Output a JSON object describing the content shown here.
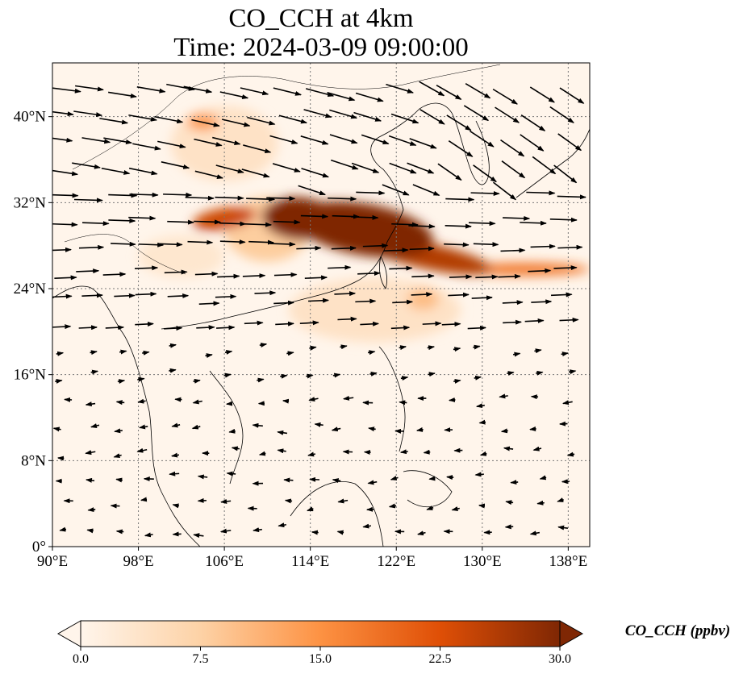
{
  "title": {
    "line1": "CO_CCH at 4km",
    "line2": "Time: 2024-03-09 09:00:00"
  },
  "map": {
    "lon_range": [
      90,
      140
    ],
    "lat_range": [
      0,
      45
    ],
    "lon_ticks": [
      {
        "value": 90,
        "label": "90°E"
      },
      {
        "value": 98,
        "label": "98°E"
      },
      {
        "value": 106,
        "label": "106°E"
      },
      {
        "value": 114,
        "label": "114°E"
      },
      {
        "value": 122,
        "label": "122°E"
      },
      {
        "value": 130,
        "label": "130°E"
      },
      {
        "value": 138,
        "label": "138°E"
      }
    ],
    "lat_ticks": [
      {
        "value": 0,
        "label": "0°"
      },
      {
        "value": 8,
        "label": "8°N"
      },
      {
        "value": 16,
        "label": "16°N"
      },
      {
        "value": 24,
        "label": "24°N"
      },
      {
        "value": 32,
        "label": "32°N"
      },
      {
        "value": 40,
        "label": "40°N"
      }
    ],
    "gridlines": true,
    "colors": {
      "background": "#fff5eb",
      "coast": "#000000",
      "grid": "#777777"
    }
  },
  "colorbar": {
    "title": "CO_CCH (ppbv)",
    "min": 0,
    "max": 30,
    "ticks": [
      {
        "value": 0,
        "label": "0.0"
      },
      {
        "value": 7.5,
        "label": "7.5"
      },
      {
        "value": 15,
        "label": "15.0"
      },
      {
        "value": 22.5,
        "label": "22.5"
      },
      {
        "value": 30,
        "label": "30.0"
      }
    ],
    "colormap": [
      "#fff5eb",
      "#fdd2a6",
      "#fd9243",
      "#df4f06",
      "#7f2704"
    ],
    "extend": "both"
  },
  "plumes": [
    {
      "lon": 119,
      "lat": 29.5,
      "rx": 6.5,
      "ry": 2.4,
      "rot": 10,
      "value": 30
    },
    {
      "lon": 113,
      "lat": 30.5,
      "rx": 3.5,
      "ry": 2.0,
      "rot": 5,
      "value": 30
    },
    {
      "lon": 125,
      "lat": 27,
      "rx": 6,
      "ry": 1.2,
      "rot": 12,
      "value": 26
    },
    {
      "lon": 134,
      "lat": 25.8,
      "rx": 6,
      "ry": 0.6,
      "rot": 0,
      "value": 18
    },
    {
      "lon": 106,
      "lat": 30.5,
      "rx": 3,
      "ry": 1.0,
      "rot": -10,
      "value": 24
    },
    {
      "lon": 110,
      "lat": 29.5,
      "rx": 4,
      "ry": 3.0,
      "rot": 0,
      "value": 8
    },
    {
      "lon": 104,
      "lat": 39.5,
      "rx": 1.5,
      "ry": 0.8,
      "rot": 0,
      "value": 14
    },
    {
      "lon": 106,
      "lat": 37.5,
      "rx": 5,
      "ry": 3.5,
      "rot": 0,
      "value": 4
    },
    {
      "lon": 120,
      "lat": 22,
      "rx": 8,
      "ry": 3.0,
      "rot": 0,
      "value": 4
    },
    {
      "lon": 124.5,
      "lat": 23,
      "rx": 1.5,
      "ry": 1.0,
      "rot": 0,
      "value": 10
    },
    {
      "lon": 102,
      "lat": 27,
      "rx": 4,
      "ry": 2.0,
      "rot": 0,
      "value": 3
    }
  ]
}
